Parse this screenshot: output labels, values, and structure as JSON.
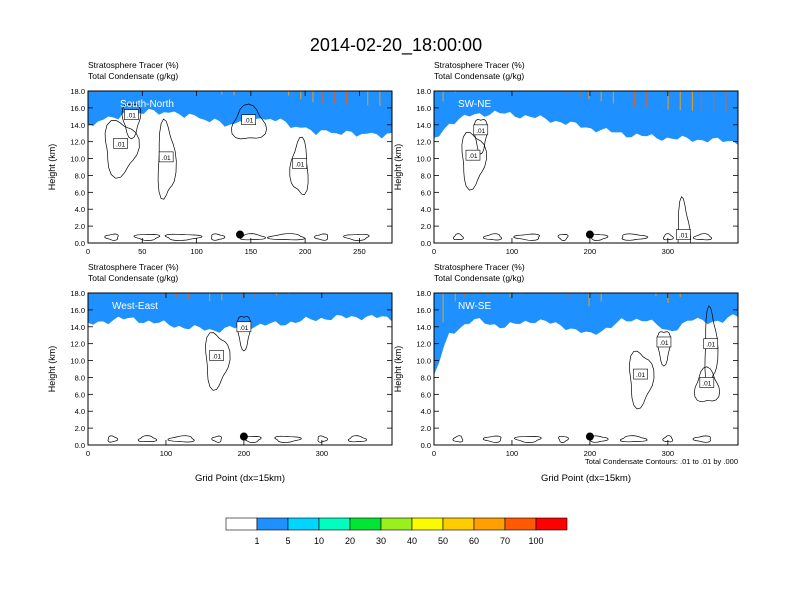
{
  "main_title": "2014-02-20_18:00:00",
  "panel_title_line1": "Stratosphere Tracer   (%)",
  "panel_title_line2": "Total Condensate   (g/kg)",
  "ylabel": "Height (km)",
  "xlabel": "Grid Point (dx=15km)",
  "contour_info": "Total Condensate Contours: .01 to .01 by .000",
  "contour_label": ".01",
  "colorbar": {
    "levels": [
      "1",
      "5",
      "10",
      "20",
      "30",
      "40",
      "50",
      "60",
      "70",
      "100"
    ],
    "colors": [
      "#ffffff",
      "#1e90ff",
      "#00d5ff",
      "#00ffbf",
      "#00e632",
      "#9af01e",
      "#fafa00",
      "#ffcc00",
      "#ffa000",
      "#ff5a00",
      "#ff0000"
    ]
  },
  "chart_data": [
    {
      "type": "heatmap",
      "name": "South-North",
      "title": "Stratosphere Tracer (%) / Total Condensate (g/kg)",
      "xlabel": "",
      "ylabel": "Height (km)",
      "xlim": [
        0,
        280
      ],
      "ylim": [
        0,
        18
      ],
      "xticks": [
        0,
        50,
        100,
        150,
        200,
        250
      ],
      "yticks": [
        0.0,
        2.0,
        4.0,
        6.0,
        8.0,
        10.0,
        12.0,
        14.0,
        16.0,
        18.0
      ],
      "tracer_base_km": [
        [
          0,
          14.8
        ],
        [
          20,
          15.6
        ],
        [
          40,
          16.2
        ],
        [
          60,
          16.4
        ],
        [
          90,
          16.0
        ],
        [
          110,
          15.4
        ],
        [
          130,
          14.8
        ],
        [
          150,
          15.2
        ],
        [
          170,
          15.6
        ],
        [
          190,
          14.6
        ],
        [
          210,
          14.0
        ],
        [
          240,
          13.8
        ],
        [
          270,
          13.6
        ],
        [
          280,
          13.6
        ]
      ],
      "marker_x": 140,
      "marker_z_km": 1.0,
      "contour_labels": [
        [
          40,
          15.2
        ],
        [
          30,
          11.8
        ],
        [
          72,
          10.2
        ],
        [
          148,
          14.6
        ],
        [
          195,
          9.4
        ]
      ]
    },
    {
      "type": "heatmap",
      "name": "SW-NE",
      "title": "Stratosphere Tracer (%) / Total Condensate (g/kg)",
      "xlabel": "",
      "ylabel": "Height (km)",
      "xlim": [
        0,
        390
      ],
      "ylim": [
        0,
        18
      ],
      "xticks": [
        0,
        100,
        200,
        300
      ],
      "yticks": [
        0.0,
        2.0,
        4.0,
        6.0,
        8.0,
        10.0,
        12.0,
        14.0,
        16.0,
        18.0
      ],
      "tracer_base_km": [
        [
          0,
          13.0
        ],
        [
          20,
          15.0
        ],
        [
          50,
          16.0
        ],
        [
          80,
          16.2
        ],
        [
          120,
          15.8
        ],
        [
          160,
          15.2
        ],
        [
          200,
          14.4
        ],
        [
          250,
          13.6
        ],
        [
          300,
          13.2
        ],
        [
          350,
          13.0
        ],
        [
          390,
          12.8
        ]
      ],
      "marker_x": 200,
      "marker_z_km": 1.0,
      "contour_labels": [
        [
          60,
          13.4
        ],
        [
          50,
          10.4
        ],
        [
          320,
          1.0
        ]
      ]
    },
    {
      "type": "heatmap",
      "name": "West-East",
      "title": "Stratosphere Tracer (%) / Total Condensate (g/kg)",
      "xlabel": "Grid Point (dx=15km)",
      "ylabel": "Height (km)",
      "xlim": [
        0,
        390
      ],
      "ylim": [
        0,
        18
      ],
      "xticks": [
        0,
        100,
        200,
        300
      ],
      "yticks": [
        0.0,
        2.0,
        4.0,
        6.0,
        8.0,
        10.0,
        12.0,
        14.0,
        16.0,
        18.0
      ],
      "tracer_base_km": [
        [
          0,
          15.0
        ],
        [
          40,
          15.8
        ],
        [
          80,
          15.4
        ],
        [
          120,
          14.8
        ],
        [
          160,
          14.4
        ],
        [
          200,
          14.8
        ],
        [
          250,
          15.2
        ],
        [
          300,
          15.8
        ],
        [
          350,
          16.0
        ],
        [
          390,
          15.8
        ]
      ],
      "marker_x": 200,
      "marker_z_km": 1.0,
      "contour_labels": [
        [
          200,
          14.0
        ],
        [
          165,
          10.6
        ]
      ]
    },
    {
      "type": "heatmap",
      "name": "NW-SE",
      "title": "Stratosphere Tracer (%) / Total Condensate (g/kg)",
      "xlabel": "Grid Point (dx=15km)",
      "ylabel": "Height (km)",
      "xlim": [
        0,
        390
      ],
      "ylim": [
        0,
        18
      ],
      "xticks": [
        0,
        100,
        200,
        300
      ],
      "yticks": [
        0.0,
        2.0,
        4.0,
        6.0,
        8.0,
        10.0,
        12.0,
        14.0,
        16.0,
        18.0
      ],
      "tracer_base_km": [
        [
          0,
          9.0
        ],
        [
          20,
          14.0
        ],
        [
          50,
          15.6
        ],
        [
          90,
          14.8
        ],
        [
          130,
          15.6
        ],
        [
          170,
          14.8
        ],
        [
          200,
          13.8
        ],
        [
          240,
          15.4
        ],
        [
          270,
          15.8
        ],
        [
          300,
          14.2
        ],
        [
          330,
          15.6
        ],
        [
          370,
          15.4
        ],
        [
          390,
          16.2
        ]
      ],
      "marker_x": 200,
      "marker_z_km": 1.0,
      "contour_labels": [
        [
          295,
          12.2
        ],
        [
          265,
          8.4
        ],
        [
          355,
          12.0
        ],
        [
          350,
          7.4
        ]
      ]
    }
  ]
}
